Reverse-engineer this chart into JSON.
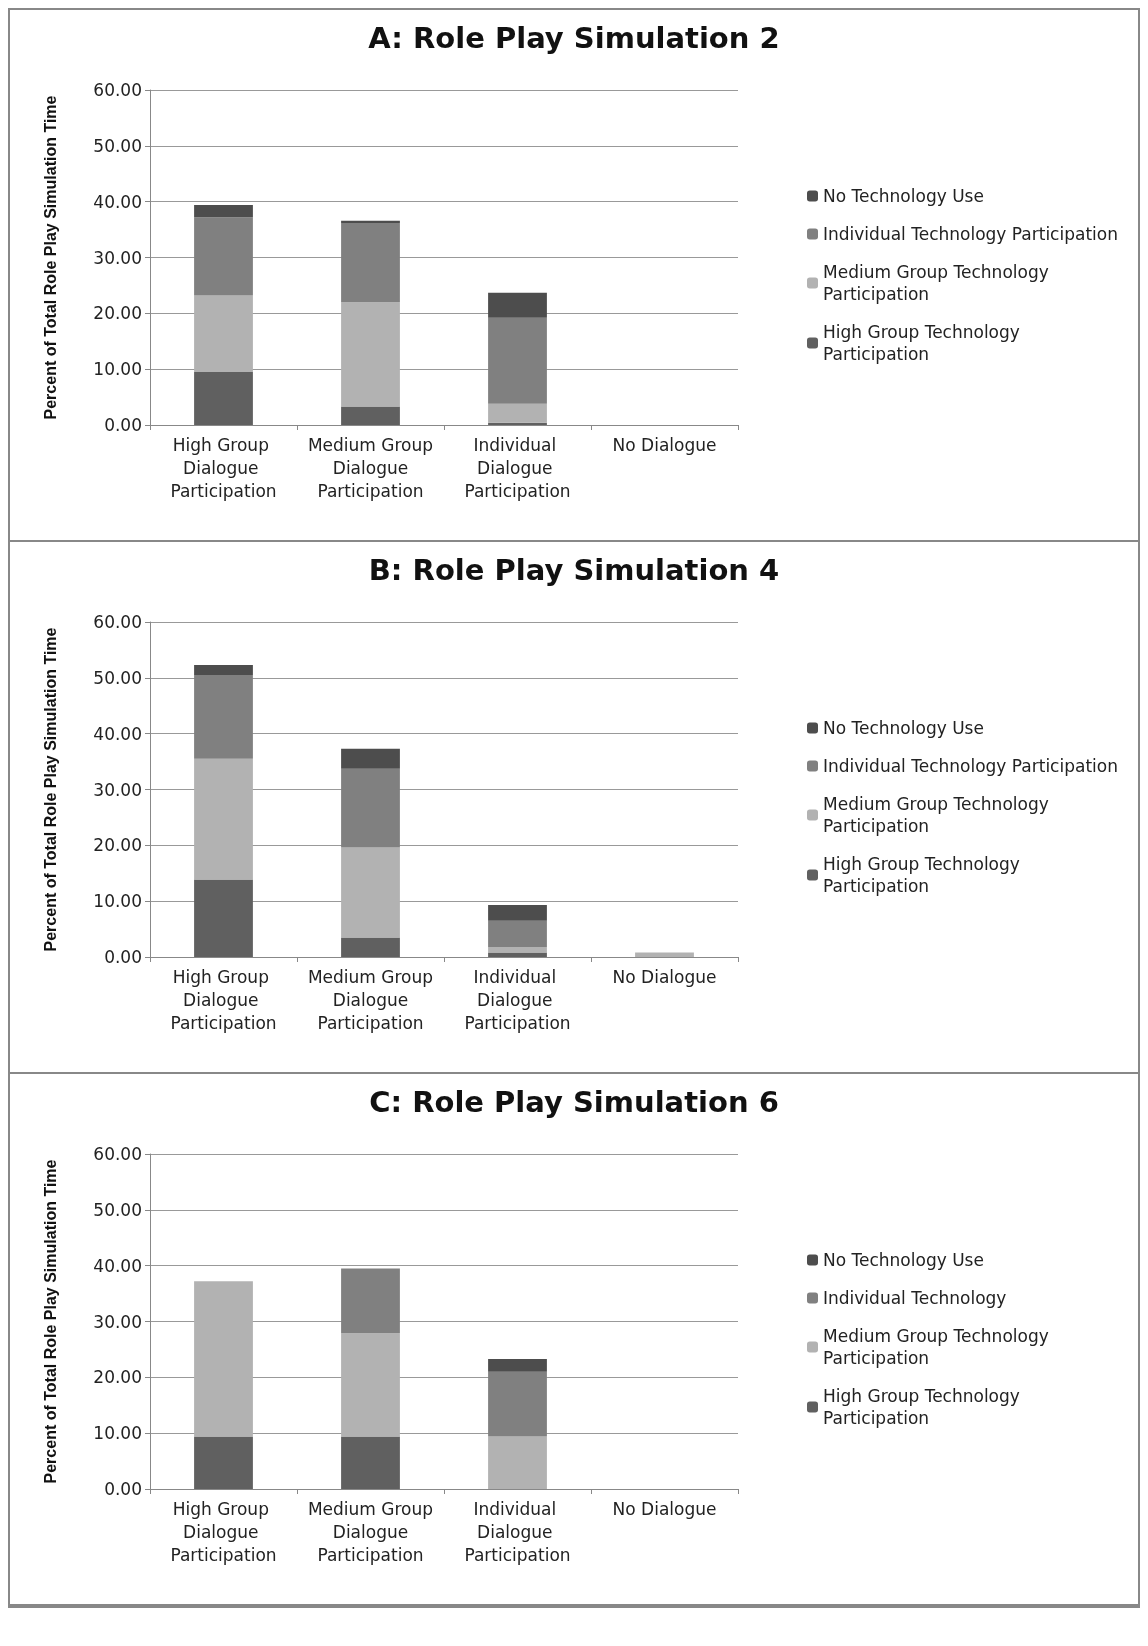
{
  "chart_data": [
    {
      "type": "bar",
      "title": "A: Role Play Simulation 2",
      "ylabel": "Percent of Total Role Play Simulation Time",
      "categories": [
        "High Group Dialogue Participation",
        "Medium Group Dialogue Participation",
        "Individual Dialogue Participation",
        "No Dialogue"
      ],
      "stacked": true,
      "ylim": [
        0,
        60
      ],
      "yticks": [
        {
          "value": 0,
          "label": "0.00"
        },
        {
          "value": 10,
          "label": "10.00"
        },
        {
          "value": 20,
          "label": "20.00"
        },
        {
          "value": 30,
          "label": "30.00"
        },
        {
          "value": 40,
          "label": "40.00"
        },
        {
          "value": 50,
          "label": "50.00"
        },
        {
          "value": 60,
          "label": "60.00"
        }
      ],
      "grid": "y",
      "legend": "right",
      "series": [
        {
          "name": "High Group Technology Participation",
          "color": "#606060",
          "values": [
            9.5,
            3.3,
            0.4,
            0
          ]
        },
        {
          "name": "Medium Group Technology Participation",
          "color": "#b2b2b2",
          "values": [
            13.7,
            18.7,
            3.4,
            0
          ]
        },
        {
          "name": "Individual Technology Participation",
          "color": "#808080",
          "values": [
            14.0,
            14.2,
            15.4,
            0
          ]
        },
        {
          "name": "No Technology Use",
          "color": "#4d4d4d",
          "values": [
            2.2,
            0.4,
            4.5,
            0
          ]
        }
      ]
    },
    {
      "type": "bar",
      "title": "B: Role Play Simulation 4",
      "ylabel": "Percent of Total Role Play Simulation Time",
      "categories": [
        "High Group Dialogue Participation",
        "Medium Group Dialogue Participation",
        "Individual Dialogue Participation",
        "No Dialogue"
      ],
      "stacked": true,
      "ylim": [
        0,
        60
      ],
      "yticks": [
        {
          "value": 0,
          "label": "0.00"
        },
        {
          "value": 10,
          "label": "10.00"
        },
        {
          "value": 20,
          "label": "20.00"
        },
        {
          "value": 30,
          "label": "30.00"
        },
        {
          "value": 40,
          "label": "40.00"
        },
        {
          "value": 50,
          "label": "50.00"
        },
        {
          "value": 60,
          "label": "60.00"
        }
      ],
      "grid": "y",
      "legend": "right",
      "series": [
        {
          "name": "High Group Technology Participation",
          "color": "#606060",
          "values": [
            13.9,
            3.5,
            0.8,
            0
          ]
        },
        {
          "name": "Medium Group Technology Participation",
          "color": "#b2b2b2",
          "values": [
            21.6,
            16.1,
            1.0,
            0.8
          ]
        },
        {
          "name": "Individual Technology Participation",
          "color": "#808080",
          "values": [
            15.0,
            14.1,
            4.7,
            0
          ]
        },
        {
          "name": "No Technology Use",
          "color": "#4d4d4d",
          "values": [
            1.8,
            3.6,
            2.8,
            0
          ]
        }
      ]
    },
    {
      "type": "bar",
      "title": "C: Role Play Simulation 6",
      "ylabel": "Percent of Total Role Play Simulation Time",
      "categories": [
        "High Group Dialogue Participation",
        "Medium Group Dialogue Participation",
        "Individual Dialogue Participation",
        "No Dialogue"
      ],
      "stacked": true,
      "ylim": [
        0,
        60
      ],
      "yticks": [
        {
          "value": 0,
          "label": "0.00"
        },
        {
          "value": 10,
          "label": "10.00"
        },
        {
          "value": 20,
          "label": "20.00"
        },
        {
          "value": 30,
          "label": "30.00"
        },
        {
          "value": 40,
          "label": "40.00"
        },
        {
          "value": 50,
          "label": "50.00"
        },
        {
          "value": 60,
          "label": "60.00"
        }
      ],
      "grid": "y",
      "legend": "right",
      "series": [
        {
          "name": "High Group Technology Participation",
          "color": "#606060",
          "values": [
            9.4,
            9.4,
            0,
            0
          ]
        },
        {
          "name": "Medium Group Technology Participation",
          "color": "#b2b2b2",
          "values": [
            27.8,
            18.5,
            9.4,
            0
          ]
        },
        {
          "name": "Individual Technology",
          "color": "#808080",
          "values": [
            0,
            11.6,
            11.6,
            0
          ]
        },
        {
          "name": "No Technology Use",
          "color": "#4d4d4d",
          "values": [
            0,
            0,
            2.3,
            0
          ]
        }
      ]
    }
  ]
}
